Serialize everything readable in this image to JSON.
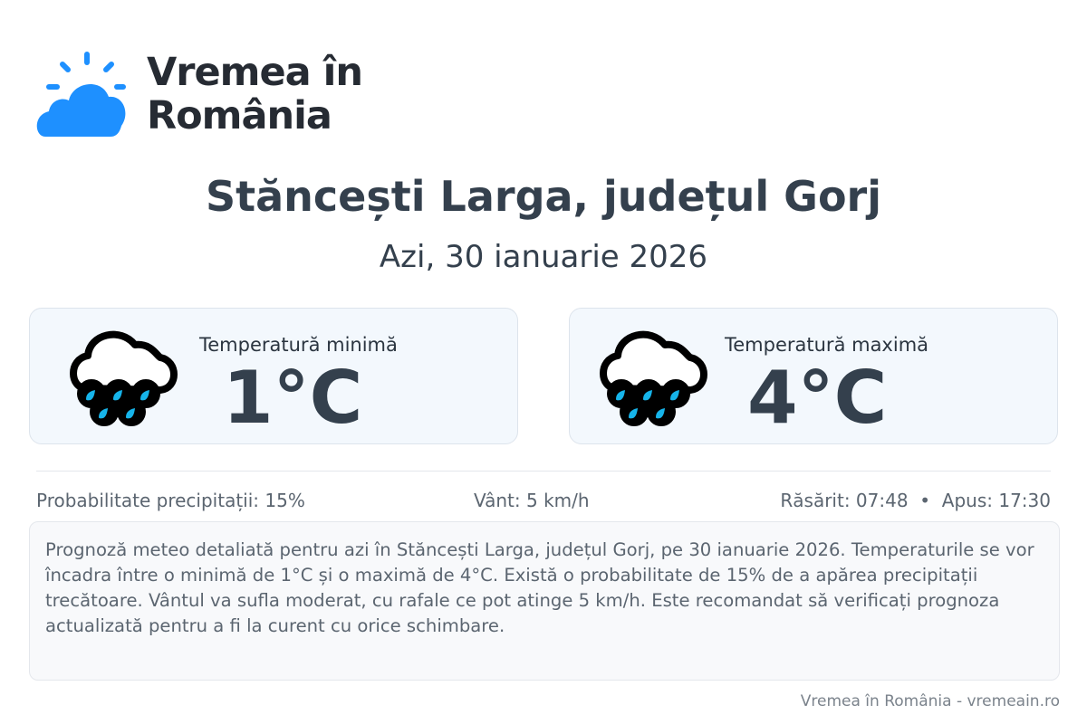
{
  "brand": {
    "name_line1": "Vremea în",
    "name_line2": "România",
    "logo_color": "#1e90ff"
  },
  "header": {
    "title": "Stăncești Larga, județul Gorj",
    "date": "Azi, 30 ianuarie 2026"
  },
  "cards": [
    {
      "label": "Temperatură minimă",
      "value": "1°C",
      "icon": "rain-cloud-icon"
    },
    {
      "label": "Temperatură maximă",
      "value": "4°C",
      "icon": "rain-cloud-icon"
    }
  ],
  "stats": {
    "precip": "Probabilitate precipitații: 15%",
    "wind": "Vânt: 5 km/h",
    "sun": "Răsărit: 07:48  •  Apus: 17:30"
  },
  "description": "Prognoză meteo detaliată pentru azi în Stăncești Larga, județul Gorj, pe 30 ianuarie 2026. Temperaturile se vor încadra între o minimă de 1°C și o maximă de 4°C. Există o probabilitate de 15% de a apărea precipitații trecătoare. Vântul va sufla moderat, cu rafale ce pot atinge 5 km/h. Este recomandat să verificați prognoza actualizată pentru a fi la curent cu orice schimbare.",
  "footer": "Vremea în România - vremeain.ro"
}
